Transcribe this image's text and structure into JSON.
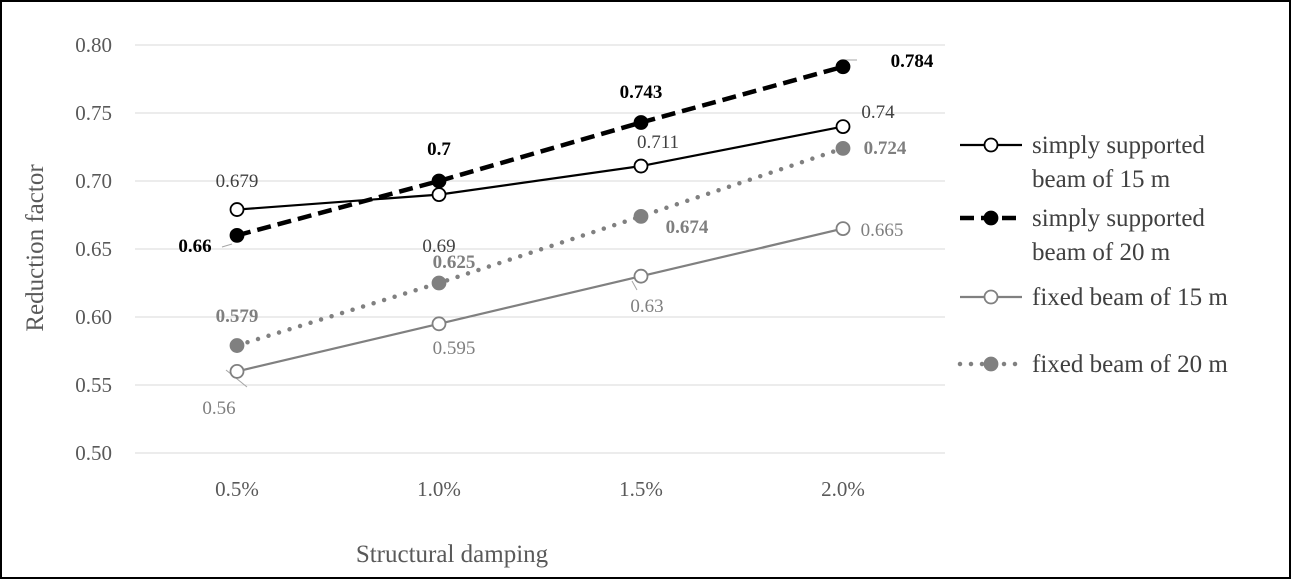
{
  "chart_data": {
    "type": "line",
    "xlabel": "Structural damping",
    "ylabel": "Reduction factor",
    "categories": [
      "0.5%",
      "1.0%",
      "1.5%",
      "2.0%"
    ],
    "ylim": [
      0.5,
      0.8
    ],
    "yticks": [
      "0.50",
      "0.55",
      "0.60",
      "0.65",
      "0.70",
      "0.75",
      "0.80"
    ],
    "grid": true,
    "legend_position": "right",
    "series": [
      {
        "name": "simply supported beam of 15 m",
        "legend_lines": [
          "simply supported",
          "beam of 15 m"
        ],
        "values": [
          0.679,
          0.69,
          0.711,
          0.74
        ],
        "labels": [
          "0.679",
          "0.69",
          "0.711",
          "0.74"
        ],
        "color": "#000000",
        "marker": "open-circle",
        "line": "solid",
        "bold_labels": false
      },
      {
        "name": "simply supported beam of 20 m",
        "legend_lines": [
          "simply supported",
          "beam of 20 m"
        ],
        "values": [
          0.66,
          0.7,
          0.743,
          0.784
        ],
        "labels": [
          "0.66",
          "0.7",
          "0.743",
          "0.784"
        ],
        "color": "#000000",
        "marker": "filled-circle",
        "line": "dashed",
        "bold_labels": true
      },
      {
        "name": "fixed beam of 15 m",
        "legend_lines": [
          "fixed beam of 15 m"
        ],
        "values": [
          0.56,
          0.595,
          0.63,
          0.665
        ],
        "labels": [
          "0.56",
          "0.595",
          "0.63",
          "0.665"
        ],
        "color": "#808080",
        "marker": "open-circle",
        "line": "solid",
        "bold_labels": false
      },
      {
        "name": "fixed beam of 20 m",
        "legend_lines": [
          "fixed beam of 20 m"
        ],
        "values": [
          0.579,
          0.625,
          0.674,
          0.724
        ],
        "labels": [
          "0.579",
          "0.625",
          "0.674",
          "0.724"
        ],
        "color": "#808080",
        "marker": "filled-circle",
        "line": "dotted",
        "bold_labels": true
      }
    ]
  }
}
